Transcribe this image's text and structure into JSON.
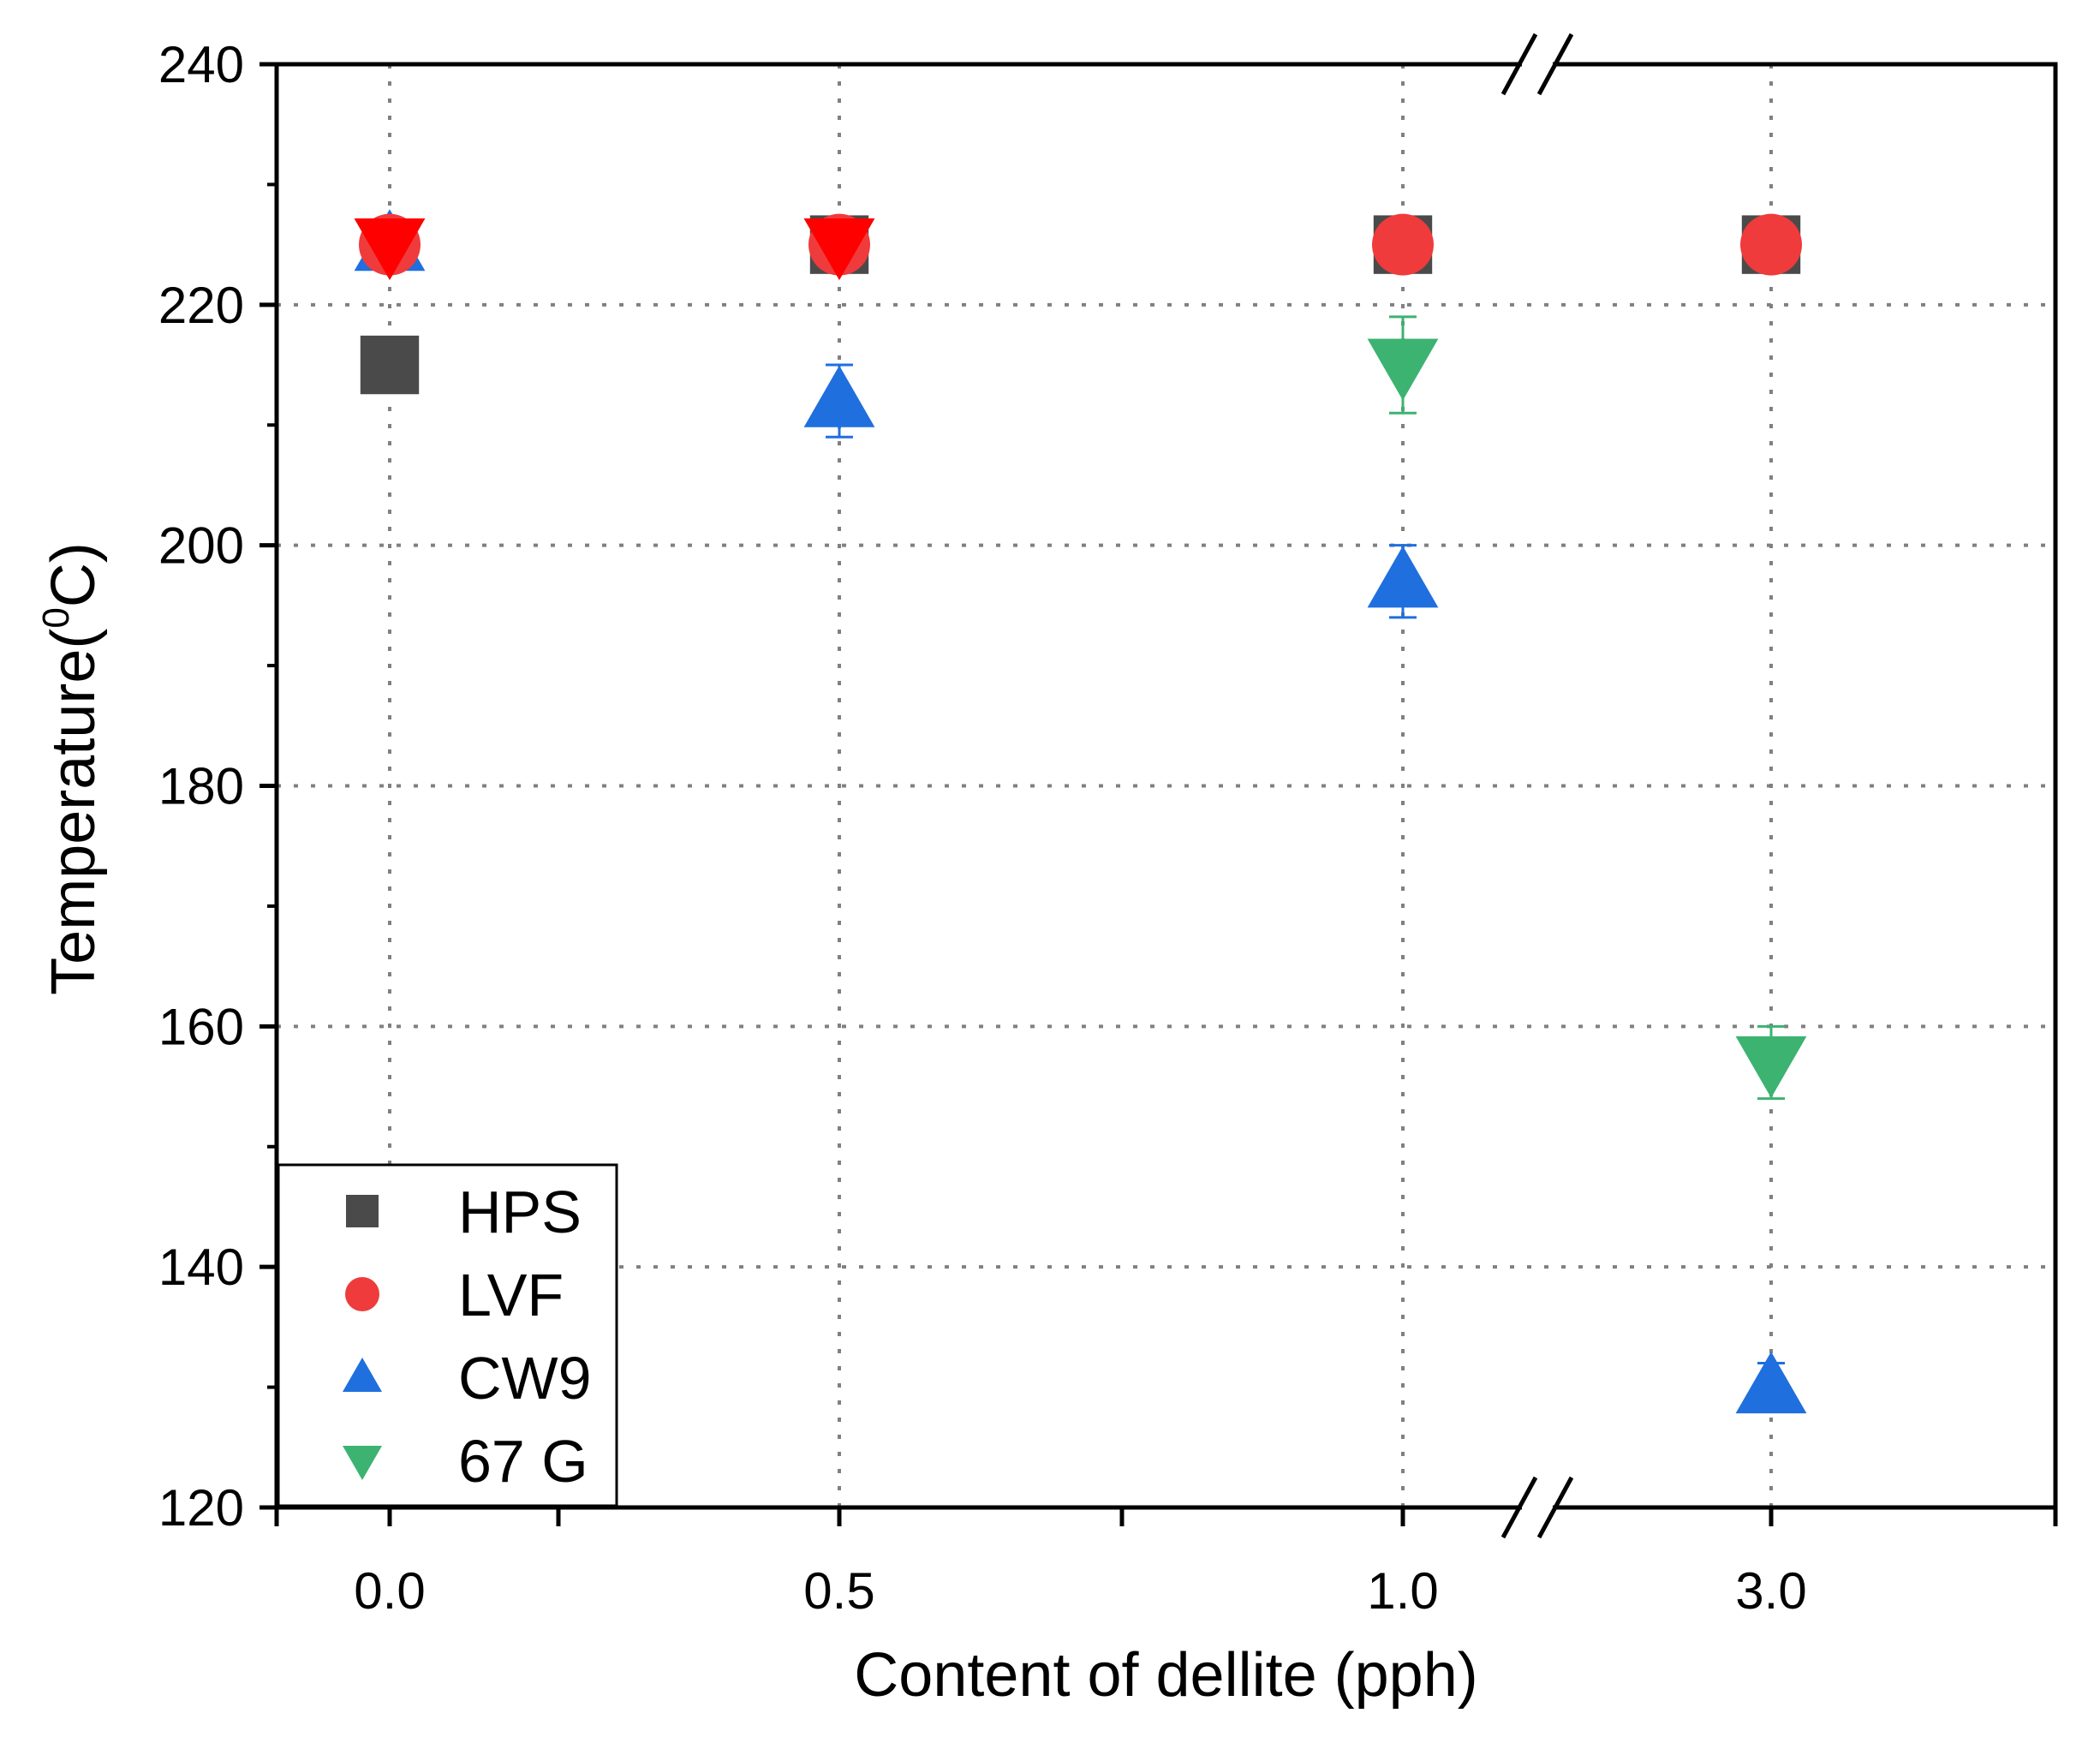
{
  "chart_data": {
    "type": "scatter",
    "title": "",
    "xlabel": "Content of dellite (pph)",
    "ylabel": "Temperature(0C)",
    "ylabel_parts": {
      "before": "Temperature(",
      "superscript": "0",
      "after": "C)"
    },
    "categories": [
      "0.0",
      "0.5",
      "1.0",
      "3.0"
    ],
    "axis_break": "between 1.0 and 3.0",
    "ylim": [
      120,
      240
    ],
    "yticks": [
      120,
      140,
      160,
      180,
      200,
      220,
      240
    ],
    "grid": true,
    "legend_position": "bottom-left",
    "series": [
      {
        "name": "HPS",
        "marker": "square",
        "color": "#4a4a4a",
        "points": [
          {
            "x": "0.0",
            "y": 215,
            "err": 2
          },
          {
            "x": "0.5",
            "y": 225,
            "err": 0
          },
          {
            "x": "1.0",
            "y": 225,
            "err": 0
          },
          {
            "x": "3.0",
            "y": 225,
            "err": 0
          }
        ]
      },
      {
        "name": "CW9",
        "marker": "triangle-up",
        "color": "#1f6fde",
        "points": [
          {
            "x": "0.0",
            "y": 225,
            "err": 0
          },
          {
            "x": "0.5",
            "y": 212,
            "err": 3
          },
          {
            "x": "1.0",
            "y": 197,
            "err": 3
          },
          {
            "x": "3.0",
            "y": 130,
            "err": 2
          }
        ]
      },
      {
        "name": "67 G",
        "marker": "triangle-down",
        "color": "#3cb371",
        "points": [
          {
            "x": "0.0",
            "y": 225,
            "err": 0
          },
          {
            "x": "0.5",
            "y": 225,
            "err": 0
          },
          {
            "x": "1.0",
            "y": 215,
            "err": 4
          },
          {
            "x": "3.0",
            "y": 157,
            "err": 3
          }
        ]
      },
      {
        "name": "LVF",
        "marker": "circle",
        "color": "#ef3b3b",
        "points": [
          {
            "x": "0.0",
            "y": 225,
            "err": 0
          },
          {
            "x": "0.5",
            "y": 225,
            "err": 0
          },
          {
            "x": "1.0",
            "y": 225,
            "err": 0
          },
          {
            "x": "3.0",
            "y": 225,
            "err": 0
          }
        ]
      },
      {
        "name": "",
        "marker": "triangle-down",
        "color": "#ff0000",
        "points": [
          {
            "x": "0.0",
            "y": 225,
            "err": 0
          },
          {
            "x": "0.5",
            "y": 225,
            "err": 0
          }
        ]
      }
    ],
    "legend": [
      {
        "label": "HPS",
        "marker": "square",
        "color": "#4a4a4a"
      },
      {
        "label": "LVF",
        "marker": "circle",
        "color": "#ef3b3b"
      },
      {
        "label": "CW9",
        "marker": "triangle-up",
        "color": "#1f6fde"
      },
      {
        "label": "67 G",
        "marker": "triangle-down",
        "color": "#3cb371"
      }
    ]
  }
}
